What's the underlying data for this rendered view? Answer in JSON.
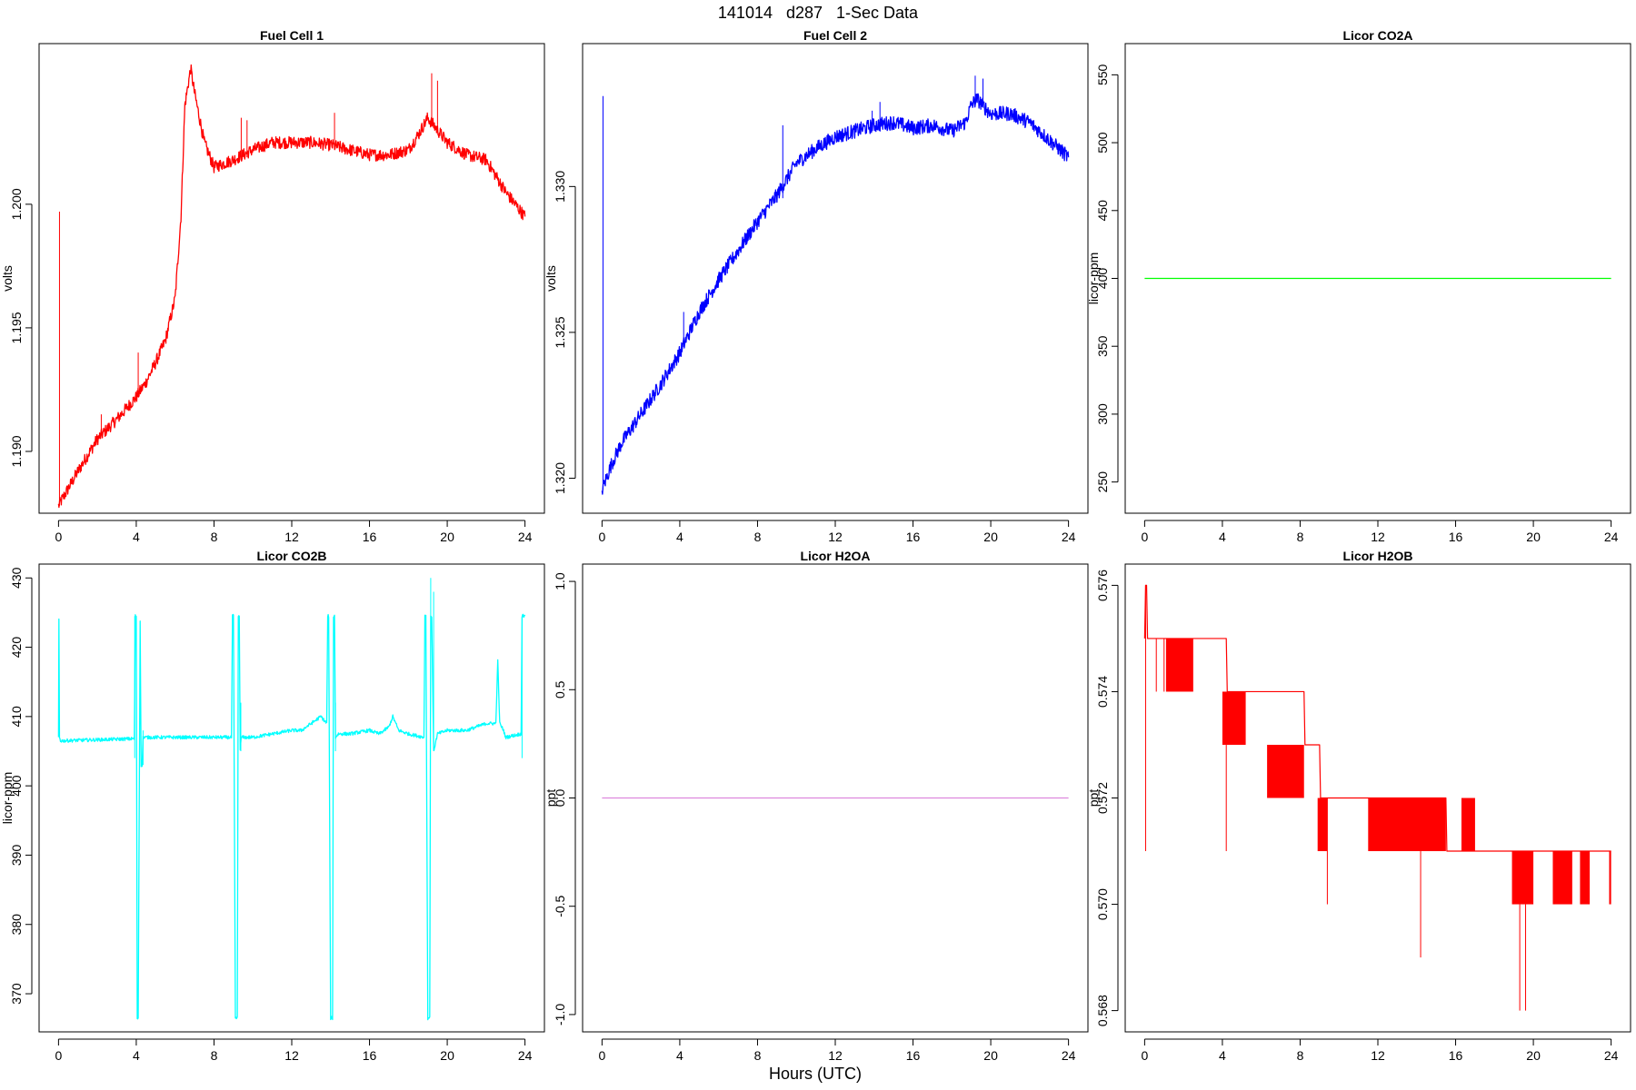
{
  "figure": {
    "title": "141014   d287   1-Sec Data",
    "xlabel": "Hours (UTC)"
  },
  "chart_data": [
    {
      "type": "line",
      "title": "Fuel Cell 1",
      "xlabel": "",
      "ylabel": "volts",
      "color": "#ff0000",
      "xlim": [
        -1,
        25
      ],
      "ylim": [
        1.1875,
        1.2065
      ],
      "xticks": [
        0,
        4,
        8,
        12,
        16,
        20,
        24
      ],
      "yticks": [
        1.19,
        1.195,
        1.2
      ],
      "ytick_labels": [
        "1.190",
        "1.195",
        "1.200"
      ],
      "noise": 0.00025,
      "series": [
        {
          "x": [
            0,
            0.5,
            1,
            2,
            3,
            4,
            4.5,
            5,
            5.5,
            6,
            6.3,
            6.5,
            6.8,
            7,
            7.5,
            8,
            9,
            10,
            11,
            12,
            13,
            14,
            15,
            16,
            17,
            18,
            18.5,
            19,
            19.5,
            20,
            21,
            22,
            23,
            24
          ],
          "y": [
            1.1878,
            1.1885,
            1.1892,
            1.1905,
            1.1913,
            1.1922,
            1.1928,
            1.1936,
            1.1945,
            1.1962,
            1.1995,
            1.204,
            1.2055,
            1.2045,
            1.2025,
            1.2015,
            1.2018,
            1.2022,
            1.2025,
            1.2025,
            1.2025,
            1.2024,
            1.2022,
            1.202,
            1.202,
            1.2022,
            1.2028,
            1.2035,
            1.203,
            1.2025,
            1.202,
            1.2018,
            1.2005,
            1.1995
          ]
        }
      ],
      "spikes": [
        {
          "x": 0.05,
          "from": 1.1878,
          "to": 1.1997
        },
        {
          "x": 2.2,
          "from": 1.1907,
          "to": 1.1915
        },
        {
          "x": 4.1,
          "from": 1.1922,
          "to": 1.194
        },
        {
          "x": 9.4,
          "from": 1.2018,
          "to": 1.2035
        },
        {
          "x": 9.7,
          "from": 1.2019,
          "to": 1.2034
        },
        {
          "x": 14.2,
          "from": 1.2024,
          "to": 1.2037
        },
        {
          "x": 19.2,
          "from": 1.2035,
          "to": 1.2053
        },
        {
          "x": 19.5,
          "from": 1.2032,
          "to": 1.205
        }
      ]
    },
    {
      "type": "line",
      "title": "Fuel Cell 2",
      "xlabel": "",
      "ylabel": "volts",
      "color": "#0000ff",
      "xlim": [
        -1,
        25
      ],
      "ylim": [
        1.3188,
        1.3349
      ],
      "xticks": [
        0,
        4,
        8,
        12,
        16,
        20,
        24
      ],
      "yticks": [
        1.32,
        1.325,
        1.33
      ],
      "ytick_labels": [
        "1.320",
        "1.325",
        "1.330"
      ],
      "noise": 0.00025,
      "series": [
        {
          "x": [
            0,
            0.5,
            1,
            2,
            3,
            4,
            5,
            6,
            7,
            8,
            9,
            10,
            11,
            12,
            13,
            14,
            15,
            16,
            17,
            18,
            18.7,
            19,
            19.3,
            19.7,
            20,
            21,
            22,
            23,
            24
          ],
          "y": [
            1.3196,
            1.3205,
            1.3212,
            1.3222,
            1.3232,
            1.3243,
            1.3257,
            1.3268,
            1.3278,
            1.3288,
            1.3297,
            1.3308,
            1.3313,
            1.3317,
            1.3319,
            1.3321,
            1.3322,
            1.332,
            1.3321,
            1.3319,
            1.3322,
            1.3328,
            1.333,
            1.3327,
            1.3325,
            1.3325,
            1.3322,
            1.3316,
            1.331
          ]
        }
      ],
      "spikes": [
        {
          "x": 0.05,
          "from": 1.3196,
          "to": 1.3331
        },
        {
          "x": 4.2,
          "from": 1.3245,
          "to": 1.3257
        },
        {
          "x": 9.3,
          "from": 1.3296,
          "to": 1.3321
        },
        {
          "x": 13.9,
          "from": 1.332,
          "to": 1.3326
        },
        {
          "x": 14.3,
          "from": 1.332,
          "to": 1.3329
        },
        {
          "x": 19.2,
          "from": 1.3328,
          "to": 1.3338
        },
        {
          "x": 19.6,
          "from": 1.3327,
          "to": 1.3337
        }
      ]
    },
    {
      "type": "line",
      "title": "Licor CO2A",
      "xlabel": "",
      "ylabel": "licor-ppm",
      "color": "#00ff00",
      "xlim": [
        -1,
        25
      ],
      "ylim": [
        227,
        573
      ],
      "xticks": [
        0,
        4,
        8,
        12,
        16,
        20,
        24
      ],
      "yticks": [
        250,
        300,
        350,
        400,
        450,
        500,
        550
      ],
      "ytick_labels": [
        "250",
        "300",
        "350",
        "400",
        "450",
        "500",
        "550"
      ],
      "noise": 0,
      "series": [
        {
          "x": [
            0,
            24
          ],
          "y": [
            400,
            400
          ]
        }
      ],
      "spikes": []
    },
    {
      "type": "line",
      "title": "Licor CO2B",
      "xlabel": "",
      "ylabel": "licor-ppm",
      "color": "#00ffff",
      "xlim": [
        -1,
        25
      ],
      "ylim": [
        364.5,
        432
      ],
      "xticks": [
        0,
        4,
        8,
        12,
        16,
        20,
        24
      ],
      "yticks": [
        370,
        380,
        390,
        400,
        410,
        420,
        430
      ],
      "ytick_labels": [
        "370",
        "380",
        "390",
        "400",
        "410",
        "420",
        "430"
      ],
      "noise": 0.25,
      "series": [
        {
          "x": [
            0,
            0.02,
            0.05,
            0.1,
            3.9,
            3.95,
            4.0,
            4.05,
            4.1,
            4.2,
            4.25,
            4.3,
            4.35,
            4.5,
            8.9,
            8.95,
            9.0,
            9.1,
            9.2,
            9.25,
            9.3,
            9.35,
            9.4,
            10,
            11,
            12,
            12.5,
            13,
            13.5,
            13.8,
            13.85,
            13.9,
            14.0,
            14.1,
            14.15,
            14.2,
            14.25,
            14.4,
            15,
            16,
            16.5,
            17,
            17.2,
            17.5,
            18,
            18.8,
            18.85,
            18.9,
            19.0,
            19.1,
            19.15,
            19.2,
            19.3,
            19.5,
            20,
            21,
            22,
            22.5,
            22.6,
            22.7,
            22.9,
            23,
            23.8,
            23.85,
            24.0
          ],
          "y": [
            407,
            424,
            407,
            406.5,
            406.8,
            424.5,
            424.5,
            366.5,
            366.5,
            424,
            403,
            403,
            407,
            407,
            407,
            424.5,
            424.5,
            366.5,
            366.5,
            424.5,
            424.5,
            405,
            407,
            407,
            407.5,
            408,
            408,
            409,
            410,
            409,
            424.5,
            424.5,
            366.5,
            366.5,
            424.5,
            424.5,
            407,
            407.5,
            407.5,
            408,
            407.5,
            408.5,
            410,
            408,
            407.5,
            407,
            424.5,
            424.5,
            366.5,
            366.5,
            424.5,
            424.5,
            405,
            407.5,
            408,
            408,
            409,
            409,
            418,
            409,
            408,
            407,
            407.5,
            424.5,
            424.5
          ]
        }
      ],
      "spikes": [
        {
          "x": 3.92,
          "from": 404,
          "to": 424.5
        },
        {
          "x": 4.35,
          "from": 403,
          "to": 408
        },
        {
          "x": 9.38,
          "from": 405,
          "to": 412
        },
        {
          "x": 14.25,
          "from": 405,
          "to": 412
        },
        {
          "x": 19.15,
          "from": 424.5,
          "to": 430
        },
        {
          "x": 19.3,
          "from": 405,
          "to": 428
        },
        {
          "x": 23.85,
          "from": 404,
          "to": 424.5
        }
      ]
    },
    {
      "type": "line",
      "title": "Licor H2OA",
      "xlabel": "",
      "ylabel": "ppt",
      "color": "#dd88dd",
      "xlim": [
        -1,
        25
      ],
      "ylim": [
        -1.08,
        1.08
      ],
      "xticks": [
        0,
        4,
        8,
        12,
        16,
        20,
        24
      ],
      "yticks": [
        -1,
        -0.5,
        0,
        0.5,
        1
      ],
      "ytick_labels": [
        "-1.0",
        "-0.5",
        "0.0",
        "0.5",
        "1.0"
      ],
      "noise": 0,
      "series": [
        {
          "x": [
            0,
            24
          ],
          "y": [
            0,
            0
          ]
        }
      ],
      "spikes": []
    },
    {
      "type": "line",
      "title": "Licor H2OB",
      "xlabel": "",
      "ylabel": "ppt",
      "color": "#ff0000",
      "xlim": [
        -1,
        25
      ],
      "ylim": [
        0.5676,
        0.5764
      ],
      "xticks": [
        0,
        4,
        8,
        12,
        16,
        20,
        24
      ],
      "yticks": [
        0.568,
        0.57,
        0.572,
        0.574,
        0.576
      ],
      "ytick_labels": [
        "0.568",
        "0.570",
        "0.572",
        "0.574",
        "0.576"
      ],
      "noise": 0,
      "series": [
        {
          "x": [
            0,
            0.05,
            0.1,
            0.15,
            4.2,
            4.25,
            8.2,
            8.25,
            9.0,
            9.05,
            15.5,
            15.55,
            24
          ],
          "y": [
            0.575,
            0.576,
            0.576,
            0.575,
            0.575,
            0.574,
            0.574,
            0.573,
            0.573,
            0.572,
            0.572,
            0.571,
            0.571
          ]
        }
      ],
      "bands": [
        {
          "x0": 1.1,
          "x1": 2.5,
          "lo": 0.574,
          "hi": 0.575
        },
        {
          "x0": 4.0,
          "x1": 5.2,
          "lo": 0.573,
          "hi": 0.574
        },
        {
          "x0": 6.3,
          "x1": 8.2,
          "lo": 0.572,
          "hi": 0.573
        },
        {
          "x0": 8.9,
          "x1": 9.4,
          "lo": 0.571,
          "hi": 0.572
        },
        {
          "x0": 11.5,
          "x1": 15.5,
          "lo": 0.571,
          "hi": 0.572
        },
        {
          "x0": 16.3,
          "x1": 17.0,
          "lo": 0.571,
          "hi": 0.572
        },
        {
          "x0": 18.9,
          "x1": 20.0,
          "lo": 0.57,
          "hi": 0.571
        },
        {
          "x0": 21.0,
          "x1": 22.0,
          "lo": 0.57,
          "hi": 0.571
        },
        {
          "x0": 22.4,
          "x1": 22.9,
          "lo": 0.57,
          "hi": 0.571
        },
        {
          "x0": 23.9,
          "x1": 24.0,
          "lo": 0.57,
          "hi": 0.571
        }
      ],
      "spikes": [
        {
          "x": 0.05,
          "from": 0.571,
          "to": 0.576
        },
        {
          "x": 0.6,
          "from": 0.574,
          "to": 0.575
        },
        {
          "x": 1.0,
          "from": 0.574,
          "to": 0.575
        },
        {
          "x": 4.2,
          "from": 0.571,
          "to": 0.573
        },
        {
          "x": 9.4,
          "from": 0.57,
          "to": 0.572
        },
        {
          "x": 14.2,
          "from": 0.569,
          "to": 0.571
        },
        {
          "x": 19.3,
          "from": 0.568,
          "to": 0.57
        },
        {
          "x": 19.6,
          "from": 0.568,
          "to": 0.57
        }
      ]
    }
  ]
}
